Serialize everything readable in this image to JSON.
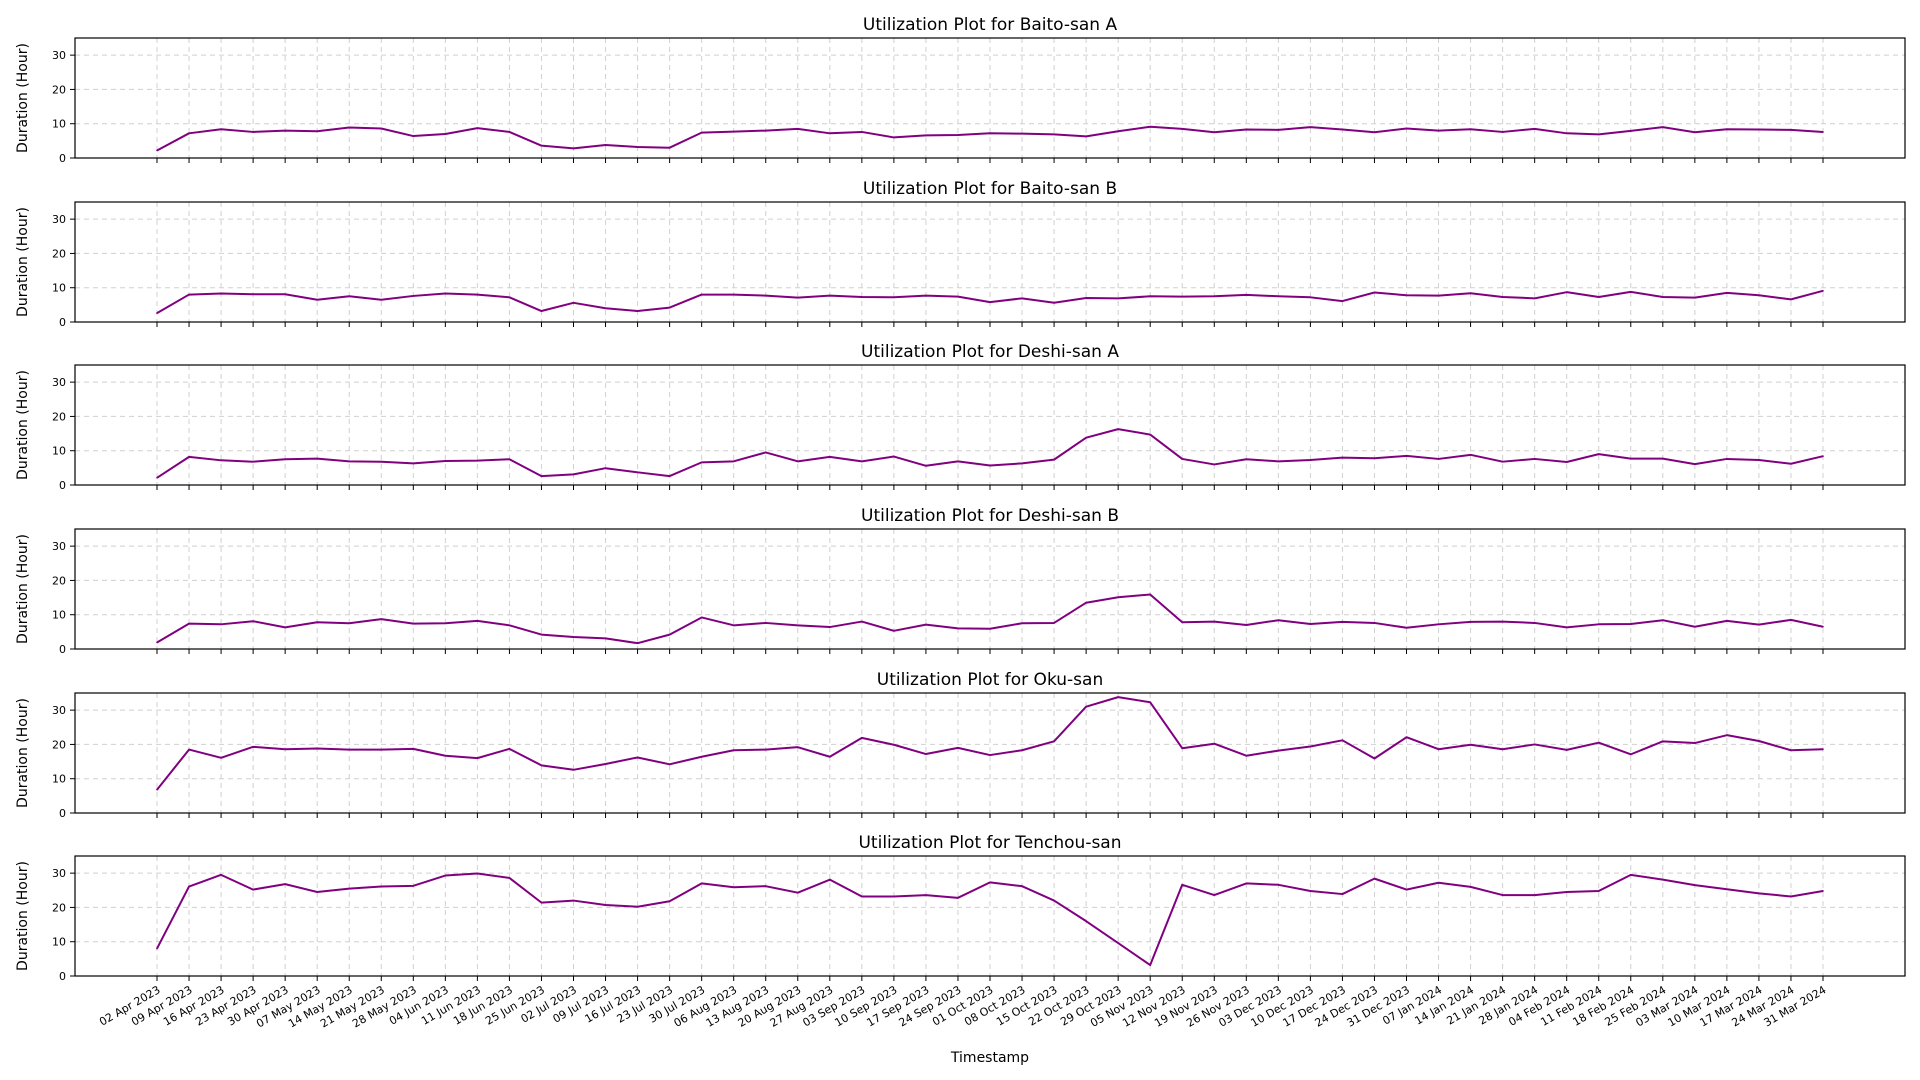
{
  "chart_data": {
    "type": "line",
    "xlabel": "Timestamp",
    "ylabel": "Duration (Hour)",
    "ylim": [
      0,
      35
    ],
    "yticks": [
      0,
      10,
      20,
      30
    ],
    "grid": true,
    "line_color": "#800080",
    "x": [
      "02 Apr 2023",
      "09 Apr 2023",
      "16 Apr 2023",
      "23 Apr 2023",
      "30 Apr 2023",
      "07 May 2023",
      "14 May 2023",
      "21 May 2023",
      "28 May 2023",
      "04 Jun 2023",
      "11 Jun 2023",
      "18 Jun 2023",
      "25 Jun 2023",
      "02 Jul 2023",
      "09 Jul 2023",
      "16 Jul 2023",
      "23 Jul 2023",
      "30 Jul 2023",
      "06 Aug 2023",
      "13 Aug 2023",
      "20 Aug 2023",
      "27 Aug 2023",
      "03 Sep 2023",
      "10 Sep 2023",
      "17 Sep 2023",
      "24 Sep 2023",
      "01 Oct 2023",
      "08 Oct 2023",
      "15 Oct 2023",
      "22 Oct 2023",
      "29 Oct 2023",
      "05 Nov 2023",
      "12 Nov 2023",
      "19 Nov 2023",
      "26 Nov 2023",
      "03 Dec 2023",
      "10 Dec 2023",
      "17 Dec 2023",
      "24 Dec 2023",
      "31 Dec 2023",
      "07 Jan 2024",
      "14 Jan 2024",
      "21 Jan 2024",
      "28 Jan 2024",
      "04 Feb 2024",
      "11 Feb 2024",
      "18 Feb 2024",
      "25 Feb 2024",
      "03 Mar 2024",
      "10 Mar 2024",
      "17 Mar 2024",
      "24 Mar 2024",
      "31 Mar 2024"
    ],
    "panels": [
      {
        "title": "Utilization Plot for Baito-san A",
        "values": [
          2.2,
          7.2,
          8.4,
          7.6,
          8.0,
          7.8,
          8.9,
          8.6,
          6.4,
          7.0,
          8.7,
          7.6,
          3.6,
          2.8,
          3.8,
          3.2,
          3.0,
          7.4,
          7.7,
          8.0,
          8.5,
          7.2,
          7.6,
          6.0,
          6.6,
          6.7,
          7.2,
          7.1,
          6.9,
          6.3,
          7.8,
          9.1,
          8.5,
          7.5,
          8.3,
          8.2,
          9.0,
          8.3,
          7.5,
          8.6,
          8.0,
          8.4,
          7.6,
          8.5,
          7.2,
          6.9,
          7.9,
          9.0,
          7.5,
          8.4,
          8.3,
          8.2,
          7.6
        ]
      },
      {
        "title": "Utilization Plot for Baito-san B",
        "values": [
          2.6,
          8.0,
          8.3,
          8.1,
          8.1,
          6.5,
          7.5,
          6.5,
          7.6,
          8.3,
          8.0,
          7.2,
          3.2,
          5.6,
          4.0,
          3.2,
          4.2,
          8.0,
          8.0,
          7.7,
          7.1,
          7.7,
          7.3,
          7.2,
          7.7,
          7.4,
          5.8,
          6.9,
          5.6,
          7.0,
          6.9,
          7.5,
          7.4,
          7.5,
          7.9,
          7.5,
          7.2,
          6.1,
          8.6,
          7.8,
          7.7,
          8.4,
          7.3,
          6.9,
          8.7,
          7.3,
          8.8,
          7.3,
          7.1,
          8.5,
          7.8,
          6.6,
          9.1
        ]
      },
      {
        "title": "Utilization Plot for Deshi-san A",
        "values": [
          2.1,
          8.2,
          7.2,
          6.8,
          7.5,
          7.7,
          6.9,
          6.8,
          6.3,
          7.0,
          7.1,
          7.5,
          2.6,
          3.1,
          4.9,
          3.7,
          2.6,
          6.6,
          6.9,
          9.5,
          6.9,
          8.2,
          6.9,
          8.3,
          5.6,
          6.9,
          5.7,
          6.3,
          7.4,
          13.8,
          16.3,
          14.7,
          7.6,
          6.0,
          7.5,
          6.9,
          7.3,
          8.0,
          7.8,
          8.5,
          7.6,
          8.8,
          6.8,
          7.6,
          6.7,
          9.0,
          7.7,
          7.7,
          6.1,
          7.6,
          7.3,
          6.2,
          8.4
        ]
      },
      {
        "title": "Utilization Plot for Deshi-san B",
        "values": [
          1.9,
          7.4,
          7.2,
          8.1,
          6.3,
          7.8,
          7.5,
          8.7,
          7.4,
          7.5,
          8.2,
          6.9,
          4.2,
          3.5,
          3.1,
          1.7,
          4.2,
          9.2,
          6.9,
          7.6,
          6.9,
          6.4,
          8.0,
          5.3,
          7.1,
          6.0,
          5.9,
          7.5,
          7.6,
          13.5,
          15.1,
          15.9,
          7.8,
          8.0,
          7.0,
          8.4,
          7.3,
          7.9,
          7.6,
          6.2,
          7.2,
          7.9,
          8.0,
          7.6,
          6.3,
          7.2,
          7.3,
          8.4,
          6.5,
          8.2,
          7.1,
          8.5,
          6.5
        ]
      },
      {
        "title": "Utilization Plot for Oku-san",
        "values": [
          6.8,
          18.5,
          16.1,
          19.3,
          18.6,
          18.8,
          18.5,
          18.5,
          18.7,
          16.7,
          16.0,
          18.7,
          13.9,
          12.6,
          14.3,
          16.2,
          14.2,
          16.4,
          18.3,
          18.5,
          19.2,
          16.4,
          21.9,
          19.9,
          17.2,
          19.0,
          16.9,
          18.3,
          20.9,
          31.0,
          33.8,
          32.3,
          18.9,
          20.2,
          16.7,
          18.2,
          19.4,
          21.2,
          15.9,
          22.1,
          18.6,
          19.9,
          18.6,
          20.0,
          18.4,
          20.5,
          17.1,
          20.9,
          20.4,
          22.7,
          21.0,
          18.3,
          18.6
        ]
      },
      {
        "title": "Utilization Plot for Tenchou-san",
        "values": [
          8.0,
          26.1,
          29.5,
          25.2,
          26.8,
          24.5,
          25.5,
          26.1,
          26.3,
          29.3,
          29.9,
          28.6,
          21.4,
          22.0,
          20.7,
          20.2,
          21.8,
          27.0,
          25.9,
          26.2,
          24.3,
          28.1,
          23.2,
          23.2,
          23.6,
          22.8,
          27.3,
          26.2,
          22.0,
          16.0,
          9.6,
          3.2,
          26.6,
          23.6,
          27.0,
          26.6,
          24.8,
          23.9,
          28.4,
          25.2,
          27.2,
          26.0,
          23.6,
          23.6,
          24.5,
          24.8,
          29.5,
          28.1,
          26.5,
          25.3,
          24.1,
          23.2,
          24.8
        ]
      }
    ]
  }
}
